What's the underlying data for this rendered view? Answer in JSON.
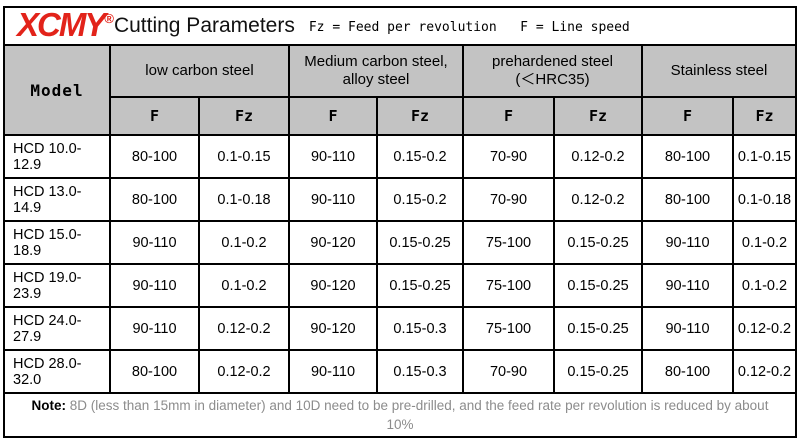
{
  "header": {
    "logo": "XCMY",
    "registered": "®",
    "title": "Cutting Parameters",
    "legend": "Fz = Feed per revolution   F = Line speed"
  },
  "table": {
    "model_header": "Model",
    "groups": [
      {
        "line1": "low carbon steel",
        "line2": ""
      },
      {
        "line1": "Medium carbon steel,",
        "line2": "alloy steel"
      },
      {
        "line1": "prehardened steel",
        "line2": "(＜HRC35)"
      },
      {
        "line1": "Stainless steel",
        "line2": ""
      }
    ],
    "sub_headers": [
      "F",
      "Fz",
      "F",
      "Fz",
      "F",
      "Fz",
      "F",
      "Fz"
    ],
    "rows": [
      {
        "model": "HCD 10.0-12.9",
        "values": [
          "80-100",
          "0.1-0.15",
          "90-110",
          "0.15-0.2",
          "70-90",
          "0.12-0.2",
          "80-100",
          "0.1-0.15"
        ]
      },
      {
        "model": "HCD 13.0-14.9",
        "values": [
          "80-100",
          "0.1-0.18",
          "90-110",
          "0.15-0.2",
          "70-90",
          "0.12-0.2",
          "80-100",
          "0.1-0.18"
        ]
      },
      {
        "model": "HCD 15.0-18.9",
        "values": [
          "90-110",
          "0.1-0.2",
          "90-120",
          "0.15-0.25",
          "75-100",
          "0.15-0.25",
          "90-110",
          "0.1-0.2"
        ]
      },
      {
        "model": "HCD 19.0-23.9",
        "values": [
          "90-110",
          "0.1-0.2",
          "90-120",
          "0.15-0.25",
          "75-100",
          "0.15-0.25",
          "90-110",
          "0.1-0.2"
        ]
      },
      {
        "model": "HCD 24.0-27.9",
        "values": [
          "90-110",
          "0.12-0.2",
          "90-120",
          "0.15-0.3",
          "75-100",
          "0.15-0.25",
          "90-110",
          "0.12-0.2"
        ]
      },
      {
        "model": "HCD 28.0-32.0",
        "values": [
          "80-100",
          "0.12-0.2",
          "90-110",
          "0.15-0.3",
          "70-90",
          "0.15-0.25",
          "80-100",
          "0.12-0.2"
        ]
      }
    ]
  },
  "note": {
    "label": "Note:",
    "text": " 8D (less than 15mm in diameter) and 10D need to be pre-drilled, and the feed rate per revolution is reduced by about",
    "line2": "10%"
  },
  "colors": {
    "logo_red": "#e2231a",
    "header_bg": "#c3c3c3",
    "note_gray": "#8c8c8c",
    "border": "#000000"
  }
}
